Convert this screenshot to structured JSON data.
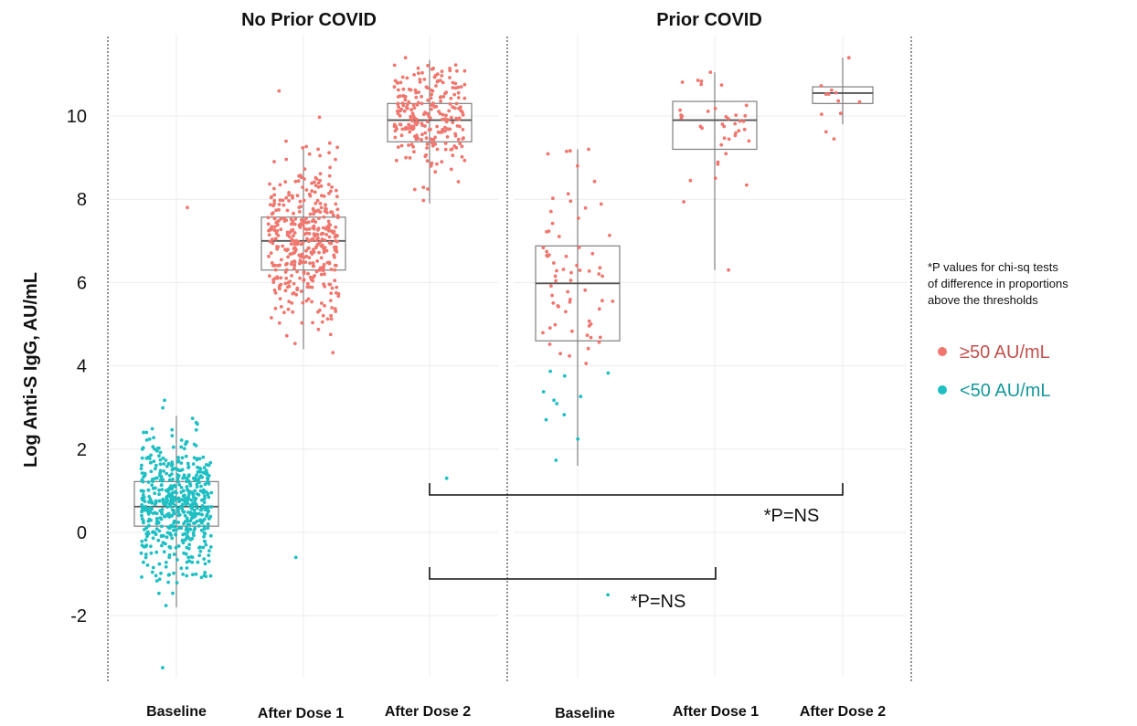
{
  "colors": {
    "above": "#F0766E",
    "below": "#1EBFC3",
    "box": "#7f7f7f",
    "median": "#555555",
    "grid": "#ececec",
    "text": "#111111"
  },
  "ylabel": "Log Anti-S IgG, AU/mL",
  "note_lines": [
    "*P values for chi-sq tests",
    "of difference in proportions",
    "above the thresholds"
  ],
  "legend": [
    {
      "label": "≥50 AU/mL",
      "color": "#F0766E"
    },
    {
      "label": "<50 AU/mL",
      "color": "#1EBFC3"
    }
  ],
  "annotations": [
    {
      "text": "*P=NS",
      "from": "Prior COVID / Baseline",
      "to": "No Prior COVID / After Dose 2"
    },
    {
      "text": "*P=NS",
      "from": "No Prior COVID / After Dose 2",
      "to": "Prior COVID / After Dose 2"
    }
  ],
  "chart_data": {
    "type": "box",
    "ylabel": "Log Anti-S IgG, AU/mL",
    "ylim": [
      -3.3,
      11.6
    ],
    "yticks": [
      -2,
      0,
      2,
      4,
      6,
      8,
      10
    ],
    "threshold_log": 3.9,
    "grid": true,
    "legend_position": "right",
    "panels": [
      {
        "title": "No Prior COVID",
        "groups": [
          {
            "label": "Baseline",
            "box": {
              "q1": 0.15,
              "median": 0.62,
              "q3": 1.22,
              "whisker_low": -1.8,
              "whisker_high": 2.8
            },
            "n": 560,
            "min": -3.25,
            "max": 7.8
          },
          {
            "label": "After Dose 1",
            "box": {
              "q1": 6.3,
              "median": 7.0,
              "q3": 7.57,
              "whisker_low": 4.4,
              "whisker_high": 9.2
            },
            "n": 420,
            "min": -0.6,
            "max": 10.6
          },
          {
            "label": "After Dose 2",
            "box": {
              "q1": 9.38,
              "median": 9.9,
              "q3": 10.3,
              "whisker_low": 7.9,
              "whisker_high": 11.35
            },
            "n": 240,
            "min": 1.3,
            "max": 11.4
          }
        ]
      },
      {
        "title": "Prior COVID",
        "groups": [
          {
            "label": "Baseline",
            "box": {
              "q1": 4.6,
              "median": 5.98,
              "q3": 6.88,
              "whisker_low": 1.6,
              "whisker_high": 9.2
            },
            "n": 80,
            "min": -1.5,
            "max": 9.2
          },
          {
            "label": "After Dose 1",
            "box": {
              "q1": 9.2,
              "median": 9.9,
              "q3": 10.35,
              "whisker_low": 6.3,
              "whisker_high": 11.05
            },
            "n": 40,
            "min": 6.3,
            "max": 11.05
          },
          {
            "label": "After Dose 2",
            "box": {
              "q1": 10.3,
              "median": 10.55,
              "q3": 10.7,
              "whisker_low": 9.8,
              "whisker_high": 11.4
            },
            "n": 12,
            "min": 9.45,
            "max": 11.4
          }
        ]
      }
    ]
  }
}
